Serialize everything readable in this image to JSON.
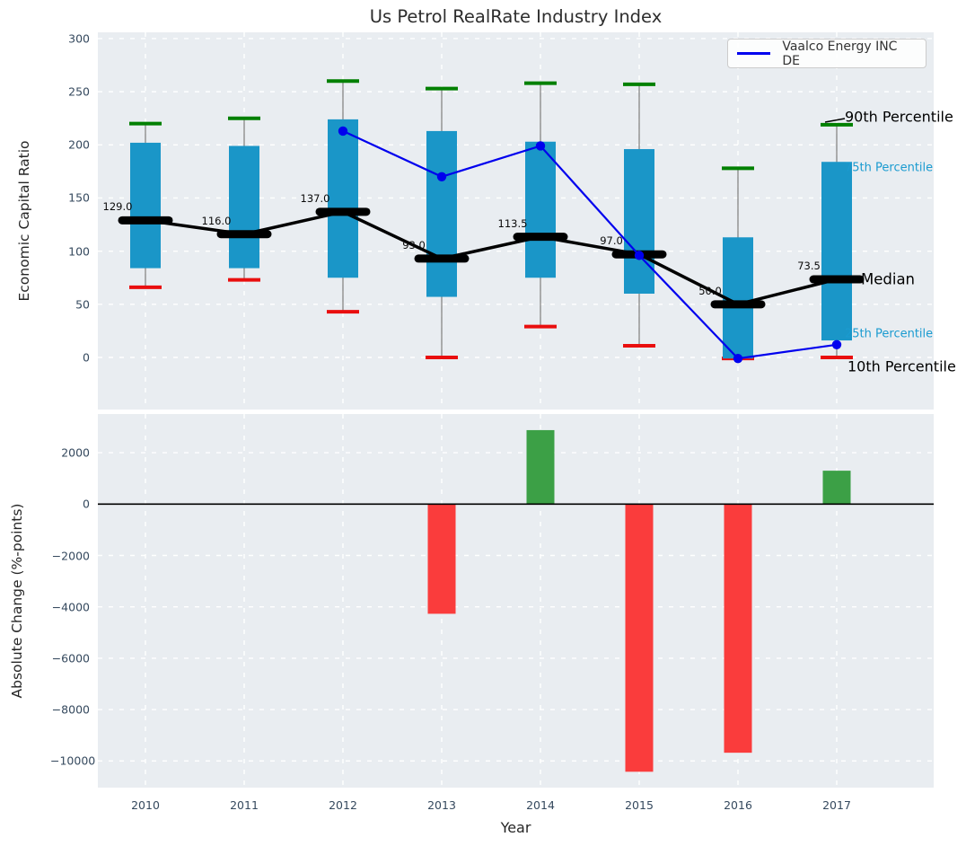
{
  "legend": {
    "label": "Vaalco Energy INC DE",
    "line_color": "#0000ee"
  },
  "colors": {
    "axes_background": "#e9edf1",
    "grid": "#ffffff",
    "box": "#1a96c8",
    "whisker": "#858585",
    "cap_90th": "#008000",
    "cap_10th": "#e90e0e",
    "median": "#000000",
    "company_line": "#0000ee",
    "bar_positive": "#3ca046",
    "bar_negative": "#fa3c3c",
    "tick_label": "#35495e",
    "zero_line": "#000000"
  },
  "chart_data": [
    {
      "type": "box",
      "title": "Us Petrol RealRate Industry Index",
      "ylabel": "Economic Capital Ratio",
      "ylim": [
        -49,
        306
      ],
      "yticks": [
        300,
        250,
        200,
        150,
        100,
        50,
        0
      ],
      "ytick_labels": [
        "300",
        "250",
        "200",
        "150",
        "100",
        "50",
        "0"
      ],
      "categories": [
        2010,
        2011,
        2012,
        2013,
        2014,
        2015,
        2016,
        2017
      ],
      "grid": true,
      "series": [
        {
          "name": "90th Percentile",
          "values": [
            220,
            225,
            260,
            253,
            258,
            257,
            178,
            219
          ]
        },
        {
          "name": "75th Percentile",
          "values": [
            202,
            199,
            224,
            213,
            203,
            196,
            113,
            184
          ]
        },
        {
          "name": "Median",
          "values": [
            129,
            116,
            137,
            93,
            113.5,
            97,
            50,
            73.5
          ],
          "labels": [
            "129.0",
            "116.0",
            "137.0",
            "93.0",
            "113.5",
            "97.0",
            "50.0",
            "73.5"
          ]
        },
        {
          "name": "25th Percentile",
          "values": [
            84,
            84,
            75,
            57,
            75,
            60,
            -1,
            16
          ]
        },
        {
          "name": "10th Percentile",
          "values": [
            66,
            73,
            43,
            0,
            29,
            11,
            -1,
            0
          ]
        },
        {
          "name": "Vaalco Energy INC DE",
          "type": "line",
          "x": [
            2012,
            2013,
            2014,
            2015,
            2016,
            2017
          ],
          "values": [
            213,
            170,
            199,
            96,
            -1,
            12
          ]
        }
      ],
      "annotations": [
        {
          "text": "90th Percentile",
          "color": "#000000",
          "size": 16
        },
        {
          "text": "75th Percentile",
          "color": "#1a9bd0",
          "size": 13
        },
        {
          "text": "Median",
          "color": "#000000",
          "size": 16.5
        },
        {
          "text": "25th Percentile",
          "color": "#1a9bd0",
          "size": 13
        },
        {
          "text": "10th Percentile",
          "color": "#000000",
          "size": 16
        }
      ],
      "legend_position": "upper right"
    },
    {
      "type": "bar",
      "ylabel": "Absolute Change (%-points)",
      "xlabel": "Year",
      "ylim": [
        -11000,
        3500
      ],
      "yticks": [
        2000,
        0,
        -2000,
        -4000,
        -6000,
        -8000,
        -10000
      ],
      "ytick_labels": [
        "2000",
        "0",
        "−2000",
        "−4000",
        "−6000",
        "−8000",
        "−10000"
      ],
      "categories": [
        2010,
        2011,
        2012,
        2013,
        2014,
        2015,
        2016,
        2017
      ],
      "xtick_labels": [
        "2010",
        "2011",
        "2012",
        "2013",
        "2014",
        "2015",
        "2016",
        "2017"
      ],
      "values": [
        null,
        null,
        null,
        -4270,
        2880,
        -10420,
        -9680,
        1300
      ],
      "grid": true
    }
  ]
}
